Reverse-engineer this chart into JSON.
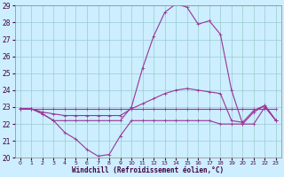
{
  "xlabel": "Windchill (Refroidissement éolien,°C)",
  "bg_color": "#cceeff",
  "grid_color": "#99cccc",
  "line_color": "#993399",
  "xlim": [
    -0.5,
    23.5
  ],
  "ylim": [
    20,
    29
  ],
  "yticks": [
    20,
    21,
    22,
    23,
    24,
    25,
    26,
    27,
    28,
    29
  ],
  "xticks": [
    0,
    1,
    2,
    3,
    4,
    5,
    6,
    7,
    8,
    9,
    10,
    11,
    12,
    13,
    14,
    15,
    16,
    17,
    18,
    19,
    20,
    21,
    22,
    23
  ],
  "curve1_x": [
    0,
    1,
    2,
    3,
    4,
    5,
    6,
    7,
    8,
    9,
    10,
    11,
    12,
    13,
    14,
    15,
    16,
    17,
    18,
    19,
    20,
    21,
    22,
    23
  ],
  "curve1_y": [
    22.9,
    22.9,
    22.6,
    22.2,
    21.5,
    21.1,
    20.5,
    20.1,
    20.2,
    21.3,
    22.2,
    22.2,
    22.2,
    22.2,
    22.2,
    22.2,
    22.2,
    22.2,
    22.0,
    22.0,
    22.0,
    22.7,
    23.1,
    22.2
  ],
  "curve2_x": [
    0,
    1,
    2,
    3,
    4,
    5,
    6,
    7,
    8,
    9,
    10,
    11,
    12,
    13,
    14,
    15,
    16,
    17,
    18,
    19,
    20,
    21,
    22,
    23
  ],
  "curve2_y": [
    22.9,
    22.9,
    22.9,
    22.9,
    22.9,
    22.9,
    22.9,
    22.9,
    22.9,
    22.9,
    22.9,
    22.9,
    22.9,
    22.9,
    22.9,
    22.9,
    22.9,
    22.9,
    22.9,
    22.9,
    22.9,
    22.9,
    22.9,
    22.9
  ],
  "curve3_x": [
    0,
    1,
    2,
    3,
    4,
    5,
    6,
    7,
    8,
    9,
    10,
    11,
    12,
    13,
    14,
    15,
    16,
    17,
    18,
    19,
    20,
    21,
    22,
    23
  ],
  "curve3_y": [
    22.9,
    22.9,
    22.7,
    22.6,
    22.5,
    22.5,
    22.5,
    22.5,
    22.5,
    22.5,
    22.9,
    23.2,
    23.5,
    23.8,
    24.0,
    24.1,
    24.0,
    23.9,
    23.8,
    22.2,
    22.1,
    22.8,
    23.1,
    22.2
  ],
  "curve4_x": [
    0,
    1,
    2,
    3,
    4,
    5,
    6,
    7,
    8,
    9,
    10,
    11,
    12,
    13,
    14,
    15,
    16,
    17,
    18,
    19,
    20,
    21,
    22,
    23
  ],
  "curve4_y": [
    22.9,
    22.9,
    22.6,
    22.2,
    22.2,
    22.2,
    22.2,
    22.2,
    22.2,
    22.2,
    23.0,
    25.3,
    27.2,
    28.6,
    29.1,
    28.9,
    27.9,
    28.1,
    27.3,
    24.0,
    22.0,
    22.0,
    23.0,
    22.2
  ]
}
